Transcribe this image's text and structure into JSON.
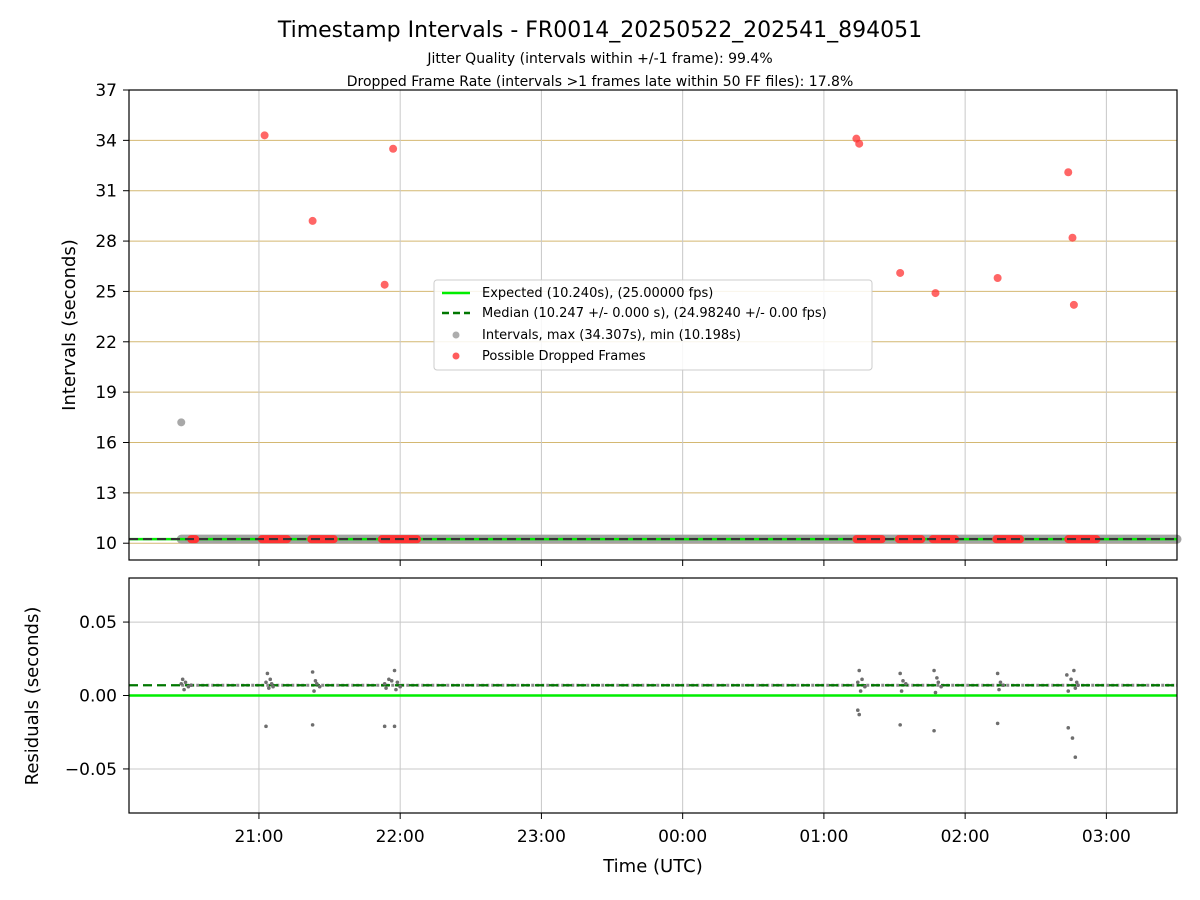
{
  "chart_data": [
    {
      "type": "scatter",
      "title": "Timestamp Intervals - FR0014_20250522_202541_894051",
      "subtitle_lines": [
        "Jitter Quality (intervals within +/-1 frame): 99.4%",
        "Dropped Frame Rate (intervals >1 frames late within 50 FF files): 17.8%"
      ],
      "xlabel": "",
      "ylabel": "Intervals (seconds)",
      "x_unit": "hours_since_20:00_UTC",
      "xlim": [
        20.08,
        27.5
      ],
      "ylim": [
        9.0,
        37.0
      ],
      "yticks": [
        10,
        13,
        16,
        19,
        22,
        25,
        28,
        31,
        34,
        37
      ],
      "xticks": [
        21,
        22,
        23,
        24,
        25,
        26,
        27
      ],
      "xtick_labels": [
        "21:00",
        "22:00",
        "23:00",
        "00:00",
        "01:00",
        "02:00",
        "03:00"
      ],
      "grid": true,
      "grid_color_y": "#d4b872",
      "grid_color_x": "#c8c8c8",
      "legend_position": "center",
      "legend": [
        {
          "label": "Expected (10.240s), (25.00000 fps)",
          "kind": "line",
          "color": "#00ee00",
          "dash": ""
        },
        {
          "label": "Median (10.247 +/- 0.000 s), (24.98240 +/- 0.00 fps)",
          "kind": "line",
          "color": "#007700",
          "dash": "dashed"
        },
        {
          "label": "Intervals, max (34.307s), min (10.198s)",
          "kind": "point",
          "color": "#999999"
        },
        {
          "label": "Possible Dropped Frames",
          "kind": "point",
          "color": "#ff3333"
        }
      ],
      "expected_line": 10.24,
      "median_line": 10.247,
      "interval_band": {
        "x_start": 20.45,
        "x_end": 27.5,
        "y": 10.24
      },
      "outlier_interval_points": [
        {
          "x": 20.45,
          "y": 17.2
        }
      ],
      "dropped_frame_points": [
        {
          "x": 21.04,
          "y": 34.3
        },
        {
          "x": 21.38,
          "y": 29.2
        },
        {
          "x": 21.89,
          "y": 25.4
        },
        {
          "x": 21.95,
          "y": 33.5
        },
        {
          "x": 25.23,
          "y": 34.1
        },
        {
          "x": 25.25,
          "y": 33.8
        },
        {
          "x": 25.54,
          "y": 26.1
        },
        {
          "x": 25.79,
          "y": 24.9
        },
        {
          "x": 26.23,
          "y": 25.8
        },
        {
          "x": 26.73,
          "y": 32.1
        },
        {
          "x": 26.76,
          "y": 28.2
        },
        {
          "x": 26.77,
          "y": 24.2
        }
      ],
      "dropped_frame_clusters": [
        {
          "x_start": 20.52,
          "x_end": 20.55
        },
        {
          "x_start": 21.02,
          "x_end": 21.2
        },
        {
          "x_start": 21.37,
          "x_end": 21.53
        },
        {
          "x_start": 21.87,
          "x_end": 22.12
        },
        {
          "x_start": 25.23,
          "x_end": 25.41
        },
        {
          "x_start": 25.53,
          "x_end": 25.69
        },
        {
          "x_start": 25.77,
          "x_end": 25.93
        },
        {
          "x_start": 26.22,
          "x_end": 26.39
        },
        {
          "x_start": 26.73,
          "x_end": 26.93
        }
      ]
    },
    {
      "type": "scatter",
      "title": "",
      "xlabel": "Time (UTC)",
      "ylabel": "Residuals (seconds)",
      "x_unit": "hours_since_20:00_UTC",
      "xlim": [
        20.08,
        27.5
      ],
      "ylim": [
        -0.08,
        0.08
      ],
      "yticks": [
        -0.05,
        0.0,
        0.05
      ],
      "ytick_labels": [
        "−0.05",
        "0.00",
        "0.05"
      ],
      "xticks": [
        21,
        22,
        23,
        24,
        25,
        26,
        27
      ],
      "xtick_labels": [
        "21:00",
        "22:00",
        "23:00",
        "00:00",
        "01:00",
        "02:00",
        "03:00"
      ],
      "grid": true,
      "expected_line": 0.0,
      "median_line": 0.007,
      "residual_cluster_points": [
        {
          "x": 20.45,
          "y": 0.008
        },
        {
          "x": 20.46,
          "y": 0.011
        },
        {
          "x": 20.47,
          "y": 0.004
        },
        {
          "x": 20.48,
          "y": 0.009
        },
        {
          "x": 20.5,
          "y": 0.006
        },
        {
          "x": 20.52,
          "y": 0.007
        },
        {
          "x": 21.05,
          "y": 0.009
        },
        {
          "x": 21.06,
          "y": 0.015
        },
        {
          "x": 21.07,
          "y": 0.005
        },
        {
          "x": 21.08,
          "y": 0.011
        },
        {
          "x": 21.09,
          "y": 0.008
        },
        {
          "x": 21.1,
          "y": 0.006
        },
        {
          "x": 21.38,
          "y": 0.016
        },
        {
          "x": 21.39,
          "y": 0.003
        },
        {
          "x": 21.4,
          "y": 0.01
        },
        {
          "x": 21.41,
          "y": 0.008
        },
        {
          "x": 21.43,
          "y": 0.006
        },
        {
          "x": 21.89,
          "y": 0.008
        },
        {
          "x": 21.9,
          "y": 0.005
        },
        {
          "x": 21.92,
          "y": 0.011
        },
        {
          "x": 21.94,
          "y": 0.01
        },
        {
          "x": 21.96,
          "y": 0.017
        },
        {
          "x": 21.97,
          "y": 0.004
        },
        {
          "x": 21.98,
          "y": 0.009
        },
        {
          "x": 22.0,
          "y": 0.006
        },
        {
          "x": 25.24,
          "y": 0.009
        },
        {
          "x": 25.25,
          "y": 0.017
        },
        {
          "x": 25.26,
          "y": 0.003
        },
        {
          "x": 25.27,
          "y": 0.011
        },
        {
          "x": 25.29,
          "y": 0.006
        },
        {
          "x": 25.54,
          "y": 0.015
        },
        {
          "x": 25.55,
          "y": 0.003
        },
        {
          "x": 25.56,
          "y": 0.01
        },
        {
          "x": 25.58,
          "y": 0.008
        },
        {
          "x": 25.78,
          "y": 0.017
        },
        {
          "x": 25.79,
          "y": 0.002
        },
        {
          "x": 25.8,
          "y": 0.012
        },
        {
          "x": 25.81,
          "y": 0.009
        },
        {
          "x": 25.83,
          "y": 0.006
        },
        {
          "x": 26.23,
          "y": 0.015
        },
        {
          "x": 26.24,
          "y": 0.004
        },
        {
          "x": 26.25,
          "y": 0.009
        },
        {
          "x": 26.27,
          "y": 0.007
        },
        {
          "x": 26.72,
          "y": 0.014
        },
        {
          "x": 26.73,
          "y": 0.003
        },
        {
          "x": 26.75,
          "y": 0.011
        },
        {
          "x": 26.77,
          "y": 0.017
        },
        {
          "x": 26.78,
          "y": 0.005
        },
        {
          "x": 26.79,
          "y": 0.009
        },
        {
          "x": 26.8,
          "y": 0.007
        }
      ],
      "residual_outlier_points": [
        {
          "x": 21.05,
          "y": -0.021
        },
        {
          "x": 21.38,
          "y": -0.02
        },
        {
          "x": 21.89,
          "y": -0.021
        },
        {
          "x": 21.96,
          "y": -0.021
        },
        {
          "x": 25.24,
          "y": -0.01
        },
        {
          "x": 25.25,
          "y": -0.013
        },
        {
          "x": 25.54,
          "y": -0.02
        },
        {
          "x": 25.78,
          "y": -0.024
        },
        {
          "x": 26.23,
          "y": -0.019
        },
        {
          "x": 26.73,
          "y": -0.022
        },
        {
          "x": 26.76,
          "y": -0.029
        },
        {
          "x": 26.78,
          "y": -0.042
        }
      ],
      "residual_band": {
        "x_start": 20.45,
        "x_end": 27.5,
        "y": 0.007
      }
    }
  ]
}
